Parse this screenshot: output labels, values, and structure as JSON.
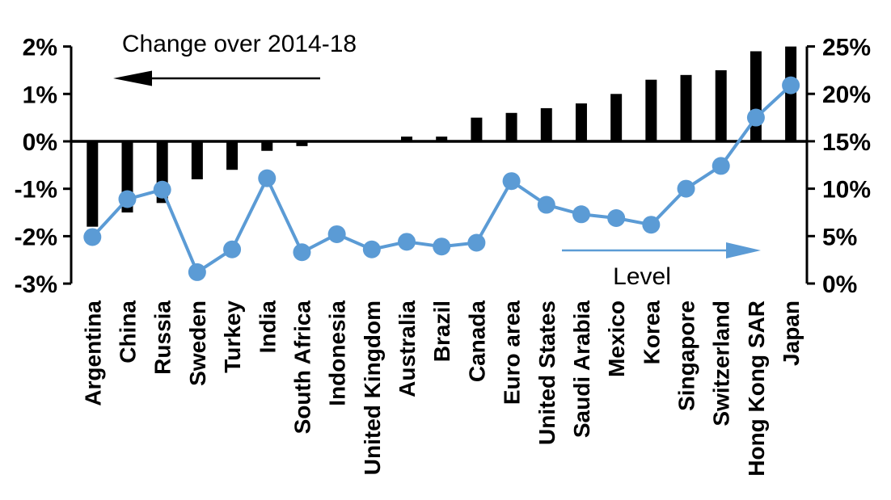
{
  "chart_data": {
    "type": "combo-bar-line",
    "title": "",
    "categories": [
      "Argentina",
      "China",
      "Russia",
      "Sweden",
      "Turkey",
      "India",
      "South Africa",
      "Indonesia",
      "United Kingdom",
      "Australia",
      "Brazil",
      "Canada",
      "Euro area",
      "United States",
      "Saudi Arabia",
      "Mexico",
      "Korea",
      "Singapore",
      "Switzerland",
      "Hong Kong SAR",
      "Japan"
    ],
    "series": [
      {
        "name": "Change over 2014-18",
        "type": "bar",
        "axis": "left",
        "unit": "%",
        "color": "#000000",
        "values": [
          -1.8,
          -1.5,
          -1.3,
          -0.8,
          -0.6,
          -0.2,
          -0.1,
          0,
          0,
          0.1,
          0.1,
          0.5,
          0.6,
          0.7,
          0.8,
          1.0,
          1.3,
          1.4,
          1.5,
          1.9,
          2.0
        ]
      },
      {
        "name": "Level",
        "type": "line",
        "axis": "right",
        "unit": "%",
        "color": "#5B9BD5",
        "values": [
          4.9,
          8.9,
          9.9,
          1.2,
          3.6,
          11.1,
          3.3,
          5.2,
          3.6,
          4.4,
          3.9,
          4.3,
          10.8,
          8.3,
          7.3,
          6.9,
          6.2,
          10.0,
          12.4,
          17.5,
          20.9
        ]
      }
    ],
    "left_axis": {
      "min": -3,
      "max": 2,
      "ticks": [
        "2%",
        "1%",
        "0%",
        "-1%",
        "-2%",
        "-3%"
      ]
    },
    "right_axis": {
      "min": 0,
      "max": 25,
      "ticks": [
        "25%",
        "20%",
        "15%",
        "10%",
        "5%",
        "0%"
      ]
    },
    "annotations": [
      {
        "text": "Change over 2014-18",
        "arrow": "left",
        "color": "#000000"
      },
      {
        "text": "Level",
        "arrow": "right",
        "color": "#5B9BD5"
      }
    ],
    "grid": false,
    "legend_position": "none"
  }
}
